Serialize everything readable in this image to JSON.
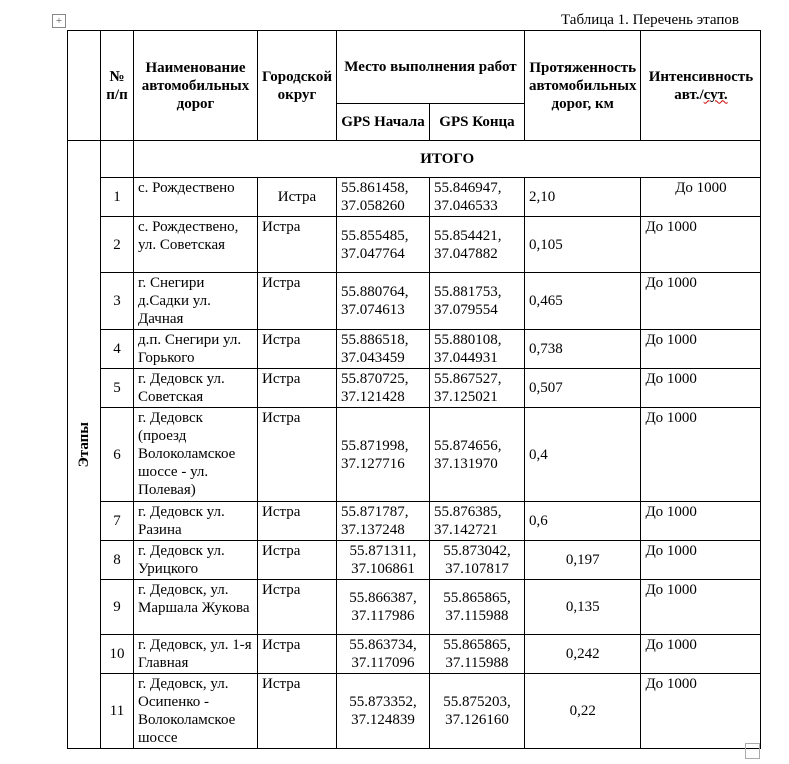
{
  "caption": "Таблица 1. Перечень этапов",
  "header": {
    "num": "№ п/п",
    "road_name": "Наименование автомобильных дорог",
    "district": "Городской округ",
    "location": "Место выполнения работ",
    "gps_start": "GPS Начала",
    "gps_end": "GPS Конца",
    "length": "Протяженность автомобильных дорог, км",
    "intensity_main": "Интенсивность авт./",
    "intensity_unit": "сут."
  },
  "stages_label": "Этапы",
  "total_label": "ИТОГО",
  "rows": [
    {
      "num": "1",
      "name": "с. Рождествено",
      "district": "Истра",
      "gps_start": "55.861458, 37.058260",
      "gps_end": "55.846947, 37.046533",
      "length": "2,10",
      "intensity": "До 1000"
    },
    {
      "num": "2",
      "name": "с. Рождествено, ул. Советская",
      "district": "Истра",
      "gps_start": "55.855485, 37.047764",
      "gps_end": "55.854421, 37.047882",
      "length": "0,105",
      "intensity": "До 1000"
    },
    {
      "num": "3",
      "name": "г. Снегири д.Садки  ул. Дачная",
      "district": "Истра",
      "gps_start": "55.880764, 37.074613",
      "gps_end": "55.881753, 37.079554",
      "length": "0,465",
      "intensity": "До 1000"
    },
    {
      "num": "4",
      "name": "д.п. Снегири ул. Горького",
      "district": "Истра",
      "gps_start": "55.886518, 37.043459",
      "gps_end": "55.880108, 37.044931",
      "length": "0,738",
      "intensity": "До 1000"
    },
    {
      "num": "5",
      "name": "г. Дедовск ул. Советская",
      "district": "Истра",
      "gps_start": "55.870725, 37.121428",
      "gps_end": "55.867527, 37.125021",
      "length": "0,507",
      "intensity": "До 1000"
    },
    {
      "num": "6",
      "name": "г. Дедовск (проезд Волоколамское шоссе - ул. Полевая)",
      "district": "Истра",
      "gps_start": "55.871998, 37.127716",
      "gps_end": "55.874656, 37.131970",
      "length": "0,4",
      "intensity": "До 1000"
    },
    {
      "num": "7",
      "name": "г. Дедовск ул. Разина",
      "district": "Истра",
      "gps_start": "55.871787, 37.137248",
      "gps_end": "55.876385, 37.142721",
      "length": "0,6",
      "intensity": "До 1000"
    },
    {
      "num": "8",
      "name": "г. Дедовск ул. Урицкого",
      "district": "Истра",
      "gps_start": "55.871311, 37.106861",
      "gps_end": "55.873042, 37.107817",
      "length": "0,197",
      "intensity": "До 1000"
    },
    {
      "num": "9",
      "name": "г. Дедовск, ул. Маршала Жукова",
      "district": "Истра",
      "gps_start": "55.866387, 37.117986",
      "gps_end": "55.865865, 37.115988",
      "length": "0,135",
      "intensity": "До 1000"
    },
    {
      "num": "10",
      "name": "г. Дедовск, ул. 1-я Главная",
      "district": "Истра",
      "gps_start": "55.863734, 37.117096",
      "gps_end": "55.865865, 37.115988",
      "length": "0,242",
      "intensity": "До 1000"
    },
    {
      "num": "11",
      "name": "г. Дедовск, ул. Осипенко - Волоколамское шоссе",
      "district": "Истра",
      "gps_start": "55.873352, 37.124839",
      "gps_end": "55.875203, 37.126160",
      "length": "0,22",
      "intensity": "До 1000"
    }
  ]
}
